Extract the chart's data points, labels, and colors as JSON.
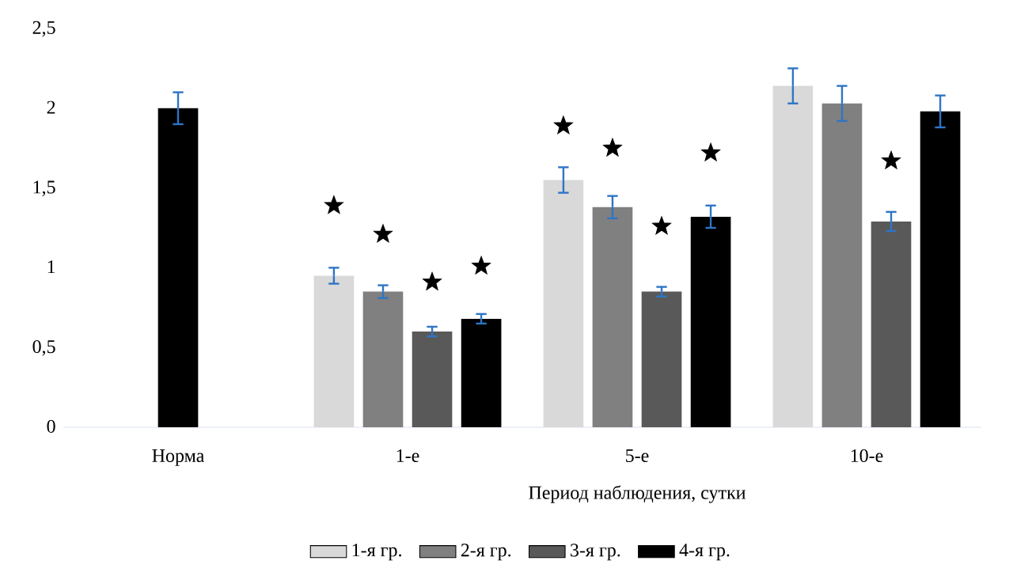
{
  "chart_data": {
    "type": "bar",
    "categories": [
      "Норма",
      "1-е",
      "5-е",
      "10-е"
    ],
    "xlabel": "Период наблюдения, сутки",
    "ylim": [
      0,
      2.5
    ],
    "yticks": [
      0,
      {
        "value": 0.5,
        "label": "0,5"
      },
      1,
      {
        "value": 1.5,
        "label": "1,5"
      },
      2,
      {
        "value": 2.5,
        "label": "2,5"
      }
    ],
    "legend": "bottom",
    "grid": false,
    "series": [
      {
        "color": "#000000",
        "values": [
          2.0,
          null,
          null,
          null
        ],
        "errors": [
          0.1,
          null,
          null,
          null
        ]
      },
      {
        "name": "1-я гр.",
        "color": "#d9d9d9",
        "values": [
          null,
          0.95,
          1.55,
          2.14
        ],
        "errors": [
          null,
          0.05,
          0.08,
          0.11
        ]
      },
      {
        "name": "2-я гр.",
        "color": "#808080",
        "values": [
          null,
          0.85,
          1.38,
          2.03
        ],
        "errors": [
          null,
          0.04,
          0.07,
          0.11
        ]
      },
      {
        "name": "3-я гр.",
        "color": "#595959",
        "values": [
          null,
          0.6,
          0.85,
          1.29
        ],
        "errors": [
          null,
          0.03,
          0.03,
          0.06
        ]
      },
      {
        "name": "4-я гр.",
        "color": "#000000",
        "values": [
          null,
          0.68,
          1.32,
          1.98
        ],
        "errors": [
          null,
          0.03,
          0.07,
          0.1
        ]
      },
      {
        "type": "scatter",
        "marker": "star",
        "color": "#000000",
        "x": [
          "Норма",
          "1-е",
          "5-е",
          "10-е"
        ],
        "values": [
          null,
          1.39,
          1.89,
          null
        ]
      },
      {
        "type": "scatter",
        "marker": "star",
        "color": "#000000",
        "x": [
          "Норма",
          "1-е",
          "5-е",
          "10-е"
        ],
        "values": [
          null,
          1.21,
          1.75,
          null
        ]
      },
      {
        "type": "scatter",
        "marker": "star",
        "color": "#000000",
        "x": [
          "Норма",
          "1-е",
          "5-е",
          "10-е"
        ],
        "values": [
          null,
          0.91,
          1.26,
          1.67
        ]
      },
      {
        "type": "scatter",
        "marker": "star",
        "color": "#000000",
        "x": [
          "Норма",
          "1-е",
          "5-е",
          "10-е"
        ],
        "values": [
          null,
          1.01,
          1.72,
          null
        ]
      }
    ]
  }
}
